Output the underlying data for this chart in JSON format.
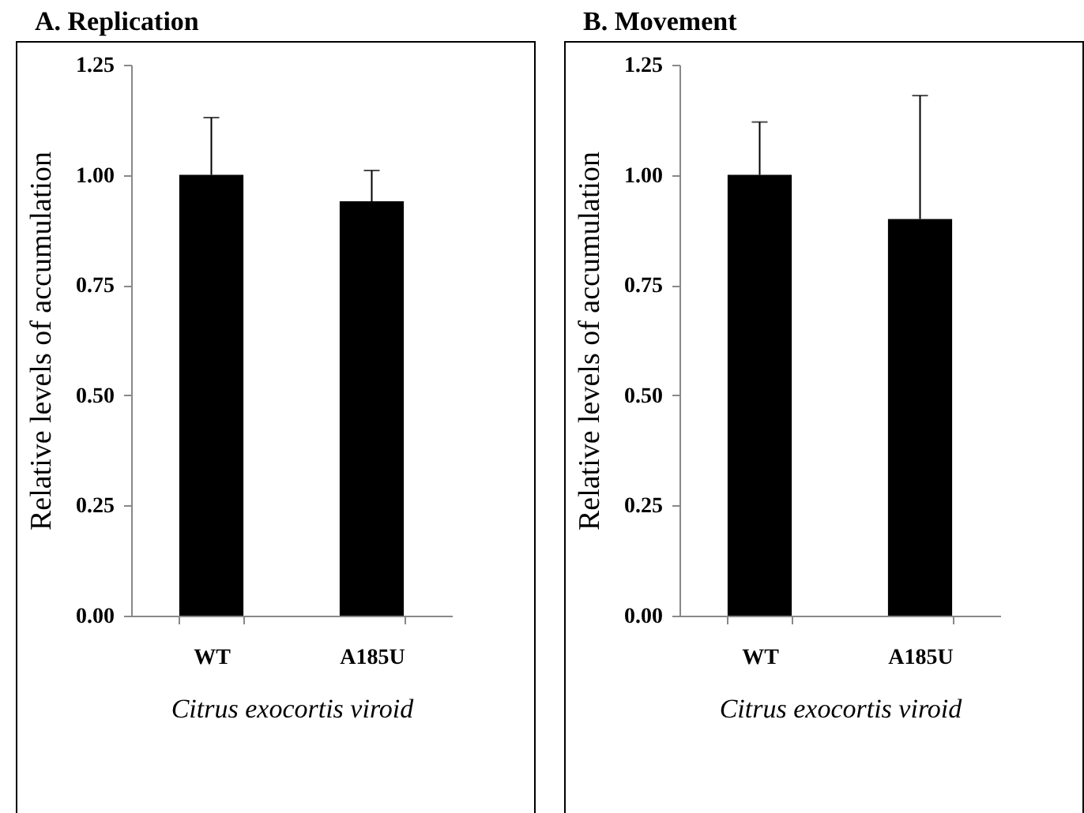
{
  "chart_data": [
    {
      "type": "bar",
      "title": "A. Replication",
      "xlabel": "Citrus exocortis viroid",
      "ylabel": "Relative levels of accumulation",
      "categories": [
        "WT",
        "A185U"
      ],
      "series": [
        {
          "color": "#000000",
          "values": [
            1.0,
            0.94
          ],
          "errors": [
            [
              1.0,
              1.13
            ],
            [
              0.94,
              1.01
            ]
          ]
        }
      ],
      "ylim": [
        0,
        1.25
      ],
      "yticks": [
        {
          "value": 0,
          "label": "0.00"
        },
        {
          "value": 0.25,
          "label": "0.25"
        },
        {
          "value": 0.5,
          "label": "0.50"
        },
        {
          "value": 0.75,
          "label": "0.75"
        },
        {
          "value": 1,
          "label": "1.00"
        },
        {
          "value": 1.25,
          "label": "1.25"
        }
      ],
      "grid": false,
      "legend": false
    },
    {
      "type": "bar",
      "title": "B. Movement",
      "xlabel": "Citrus exocortis viroid",
      "ylabel": "Relative levels of accumulation",
      "categories": [
        "WT",
        "A185U"
      ],
      "series": [
        {
          "color": "#000000",
          "values": [
            1.0,
            0.9
          ],
          "errors": [
            [
              1.0,
              1.12
            ],
            [
              0.9,
              1.18
            ]
          ]
        }
      ],
      "ylim": [
        0,
        1.25
      ],
      "yticks": [
        {
          "value": 0,
          "label": "0.00"
        },
        {
          "value": 0.25,
          "label": "0.25"
        },
        {
          "value": 0.5,
          "label": "0.50"
        },
        {
          "value": 0.75,
          "label": "0.75"
        },
        {
          "value": 1,
          "label": "1.00"
        },
        {
          "value": 1.25,
          "label": "1.25"
        }
      ],
      "grid": false,
      "legend": false
    }
  ]
}
